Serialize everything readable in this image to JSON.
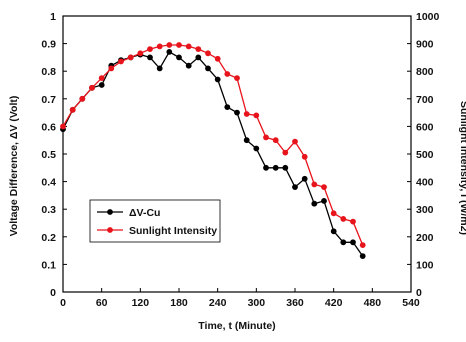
{
  "chart_data": {
    "type": "line",
    "title": "",
    "xlabel": "Time, t (Minute)",
    "ylabel_left": "Voltage  Difference, ΔV (Volt)",
    "ylabel_right": "Sunlight  Intensity, I (W/m2)",
    "xlim": [
      0,
      540
    ],
    "xticks": [
      "0",
      "60",
      "120",
      "180",
      "240",
      "300",
      "360",
      "420",
      "480",
      "540"
    ],
    "ylim_left": [
      0,
      1
    ],
    "yticks_left": [
      "0",
      "0.1",
      "0.2",
      "0.3",
      "0.4",
      "0.5",
      "0.6",
      "0.7",
      "0.8",
      "0.9",
      "1"
    ],
    "ylim_right": [
      0,
      1000
    ],
    "yticks_right": [
      "0",
      "100",
      "200",
      "300",
      "400",
      "500",
      "600",
      "700",
      "800",
      "900",
      "1000"
    ],
    "grid": false,
    "legend_position": "lower-left",
    "series": [
      {
        "name": "ΔV-Cu",
        "axis": "left",
        "color": "#000000",
        "marker": "circle",
        "x": [
          0,
          15,
          30,
          45,
          60,
          75,
          90,
          105,
          120,
          135,
          150,
          165,
          180,
          195,
          210,
          225,
          240,
          255,
          270,
          285,
          300,
          315,
          330,
          345,
          360,
          375,
          390,
          405,
          420,
          435,
          450,
          465
        ],
        "values": [
          0.59,
          0.66,
          0.7,
          0.74,
          0.75,
          0.82,
          0.84,
          0.85,
          0.86,
          0.85,
          0.81,
          0.87,
          0.85,
          0.82,
          0.85,
          0.81,
          0.77,
          0.67,
          0.65,
          0.55,
          0.52,
          0.45,
          0.45,
          0.45,
          0.38,
          0.41,
          0.32,
          0.33,
          0.22,
          0.18,
          0.18,
          0.13
        ]
      },
      {
        "name": "Sunlight Intensity",
        "axis": "right",
        "color": "#e8141c",
        "marker": "circle",
        "x": [
          0,
          15,
          30,
          45,
          60,
          75,
          90,
          105,
          120,
          135,
          150,
          165,
          180,
          195,
          210,
          225,
          240,
          255,
          270,
          285,
          300,
          315,
          330,
          345,
          360,
          375,
          390,
          405,
          420,
          435,
          450,
          465
        ],
        "values": [
          600,
          660,
          700,
          740,
          775,
          810,
          835,
          850,
          865,
          880,
          890,
          895,
          895,
          890,
          880,
          865,
          845,
          790,
          775,
          645,
          640,
          560,
          550,
          505,
          545,
          490,
          390,
          380,
          285,
          265,
          255,
          170
        ]
      }
    ]
  }
}
